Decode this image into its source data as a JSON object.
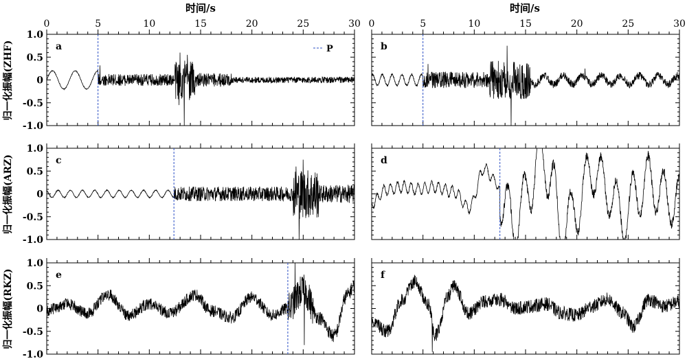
{
  "figure": {
    "top_axis_title": "时间/s",
    "row_ylabels": [
      "归一化振幅(ZHF)",
      "归一化振幅(ARZ)",
      "归一化振幅(RKZ)"
    ],
    "legend_label": "P",
    "colors": {
      "trace": "#000000",
      "p_marker": "#2b4fc4",
      "axis": "#000000"
    }
  },
  "chart_data": [
    {
      "type": "line",
      "panel": "a",
      "station": "ZHF",
      "xlim": [
        0,
        30
      ],
      "ylim": [
        -1.0,
        1.0
      ],
      "xticks": [
        "0",
        "5",
        "10",
        "15",
        "20",
        "25",
        "30"
      ],
      "yticks": [
        "1.0",
        "0.5",
        "0",
        "-0.5",
        "-1.0"
      ],
      "p_arrival": 5.0,
      "legend": "P",
      "segments": [
        {
          "t0": 0.0,
          "t1": 5.0,
          "amp": 0.01,
          "smooth": 0.2,
          "freq": 0.15
        },
        {
          "t0": 5.0,
          "t1": 12.5,
          "amp": 0.13,
          "smooth": 0.0
        },
        {
          "t0": 12.5,
          "t1": 14.5,
          "amp": 0.45,
          "smooth": 0.0
        },
        {
          "t0": 14.5,
          "t1": 18.0,
          "amp": 0.15,
          "smooth": 0.0
        },
        {
          "t0": 18.0,
          "t1": 30.0,
          "amp": 0.07,
          "smooth": 0.0
        }
      ],
      "spikes": [
        {
          "t": 13.4,
          "v": -1.0
        },
        {
          "t": 13.0,
          "v": 0.6
        },
        {
          "t": 13.7,
          "v": 0.55
        },
        {
          "t": 5.2,
          "v": 0.32
        },
        {
          "t": 12.9,
          "v": -0.55
        }
      ]
    },
    {
      "type": "line",
      "panel": "b",
      "station": "ZHF",
      "xlim": [
        0,
        30
      ],
      "ylim": [
        -1.0,
        1.0
      ],
      "xticks": [
        "0",
        "5",
        "10",
        "15",
        "20",
        "25",
        "30"
      ],
      "yticks": [
        "1.0",
        "0.5",
        "0",
        "-0.5",
        "-1.0"
      ],
      "p_arrival": 5.0,
      "segments": [
        {
          "t0": 0.0,
          "t1": 5.0,
          "amp": 0.02,
          "smooth": 0.12,
          "freq": 0.35
        },
        {
          "t0": 5.0,
          "t1": 11.5,
          "amp": 0.18,
          "smooth": 0.0
        },
        {
          "t0": 11.5,
          "t1": 15.5,
          "amp": 0.42,
          "smooth": 0.0
        },
        {
          "t0": 15.5,
          "t1": 30.0,
          "amp": 0.08,
          "smooth": 0.1,
          "freq": 0.18
        }
      ],
      "spikes": [
        {
          "t": 13.6,
          "v": -1.0
        },
        {
          "t": 13.2,
          "v": 0.75
        },
        {
          "t": 20.8,
          "v": 0.25
        },
        {
          "t": 5.5,
          "v": 0.35
        }
      ]
    },
    {
      "type": "line",
      "panel": "c",
      "station": "ARZ",
      "xlim": [
        0,
        30
      ],
      "ylim": [
        -1.0,
        1.0
      ],
      "xticks": [
        "0",
        "5",
        "10",
        "15",
        "20",
        "25",
        "30"
      ],
      "yticks": [
        "1.0",
        "0.5",
        "0",
        "-0.5",
        "-1.0"
      ],
      "p_arrival": 12.4,
      "segments": [
        {
          "t0": 0.0,
          "t1": 12.4,
          "amp": 0.01,
          "smooth": 0.08,
          "freq": 0.28
        },
        {
          "t0": 12.4,
          "t1": 24.0,
          "amp": 0.16,
          "smooth": 0.0
        },
        {
          "t0": 24.0,
          "t1": 26.5,
          "amp": 0.55,
          "smooth": 0.0
        },
        {
          "t0": 26.5,
          "t1": 30.0,
          "amp": 0.2,
          "smooth": 0.0
        }
      ],
      "spikes": [
        {
          "t": 24.6,
          "v": -1.0
        },
        {
          "t": 25.0,
          "v": 0.75
        },
        {
          "t": 24.3,
          "v": 0.6
        }
      ]
    },
    {
      "type": "line",
      "panel": "d",
      "station": "ARZ",
      "xlim": [
        0,
        30
      ],
      "ylim": [
        -1.0,
        1.0
      ],
      "xticks": [
        "0",
        "5",
        "10",
        "15",
        "20",
        "25",
        "30"
      ],
      "yticks": [
        "1.0",
        "0.5",
        "0",
        "-0.5",
        "-1.0"
      ],
      "p_arrival": 12.5,
      "segments": [
        {
          "t0": 0.0,
          "t1": 12.5,
          "amp": 0.03,
          "smooth": 0.12,
          "freq": 0.5
        },
        {
          "t0": 12.5,
          "t1": 30.0,
          "amp": 0.1,
          "smooth": 0.55,
          "freq": 0.22
        }
      ],
      "envelope_points": [
        [
          0,
          -0.2
        ],
        [
          1.5,
          0.1
        ],
        [
          3,
          0.15
        ],
        [
          4.5,
          0.1
        ],
        [
          6,
          0.15
        ],
        [
          8,
          0.05
        ],
        [
          9.5,
          -0.3
        ],
        [
          11,
          0.55
        ],
        [
          12,
          0.3
        ],
        [
          13,
          -0.3
        ],
        [
          14,
          -0.65
        ],
        [
          15.5,
          0.2
        ],
        [
          16.5,
          0.95
        ],
        [
          17.5,
          0.3
        ],
        [
          18.5,
          -0.8
        ],
        [
          20,
          -0.3
        ],
        [
          21.5,
          0.55
        ],
        [
          23,
          0.1
        ],
        [
          24.5,
          -0.5
        ],
        [
          26,
          0.05
        ],
        [
          27,
          0.3
        ],
        [
          28.5,
          -0.05
        ],
        [
          30,
          -0.2
        ]
      ],
      "spikes": []
    },
    {
      "type": "line",
      "panel": "e",
      "station": "RKZ",
      "xlim": [
        0,
        30
      ],
      "ylim": [
        -1.0,
        1.0
      ],
      "xticks": [
        "0",
        "5",
        "10",
        "15",
        "20",
        "25",
        "30"
      ],
      "yticks": [
        "1.0",
        "0.5",
        "0",
        "-0.5",
        "-1.0"
      ],
      "p_arrival": 23.5,
      "segments": [
        {
          "t0": 0.0,
          "t1": 23.5,
          "amp": 0.13,
          "smooth": 0.0
        },
        {
          "t0": 23.5,
          "t1": 26.0,
          "amp": 0.35,
          "smooth": 0.0
        },
        {
          "t0": 26.0,
          "t1": 30.0,
          "amp": 0.15,
          "smooth": 0.0
        }
      ],
      "envelope_points": [
        [
          0,
          -0.05
        ],
        [
          2,
          0.1
        ],
        [
          4,
          -0.1
        ],
        [
          6,
          0.3
        ],
        [
          8,
          -0.15
        ],
        [
          10,
          0.1
        ],
        [
          12,
          -0.1
        ],
        [
          14.5,
          0.3
        ],
        [
          16,
          -0.05
        ],
        [
          18,
          -0.2
        ],
        [
          20,
          0.25
        ],
        [
          22,
          -0.15
        ],
        [
          23.5,
          0.0
        ],
        [
          25,
          0.4
        ],
        [
          26.5,
          -0.2
        ],
        [
          28,
          -0.6
        ],
        [
          29.3,
          0.3
        ],
        [
          30,
          0.5
        ]
      ],
      "spikes": [
        {
          "t": 24.2,
          "v": 1.0
        },
        {
          "t": 25.1,
          "v": -0.8
        }
      ]
    },
    {
      "type": "line",
      "panel": "f",
      "station": "RKZ",
      "xlim": [
        0,
        30
      ],
      "ylim": [
        -1.0,
        1.0
      ],
      "xticks": [
        "0",
        "5",
        "10",
        "15",
        "20",
        "25",
        "30"
      ],
      "yticks": [
        "1.0",
        "0.5",
        "0",
        "-0.5",
        "-1.0"
      ],
      "p_arrival": null,
      "segments": [
        {
          "t0": 0.0,
          "t1": 30.0,
          "amp": 0.15,
          "smooth": 0.0
        }
      ],
      "envelope_points": [
        [
          0,
          -0.3
        ],
        [
          1.5,
          -0.5
        ],
        [
          3,
          0.2
        ],
        [
          4.2,
          0.6
        ],
        [
          5.5,
          0.1
        ],
        [
          6.2,
          -0.6
        ],
        [
          7.5,
          0.3
        ],
        [
          8,
          0.5
        ],
        [
          9.5,
          -0.1
        ],
        [
          11,
          0.15
        ],
        [
          12.5,
          0.2
        ],
        [
          14,
          0.0
        ],
        [
          15.5,
          0.05
        ],
        [
          17,
          0.1
        ],
        [
          18.5,
          -0.1
        ],
        [
          20,
          -0.15
        ],
        [
          21.5,
          0.05
        ],
        [
          23,
          0.2
        ],
        [
          24.5,
          -0.1
        ],
        [
          25.5,
          -0.4
        ],
        [
          27,
          0.2
        ],
        [
          28.5,
          0.05
        ],
        [
          30,
          0.15
        ]
      ],
      "spikes": [
        {
          "t": 5.9,
          "v": -0.95
        }
      ]
    }
  ]
}
